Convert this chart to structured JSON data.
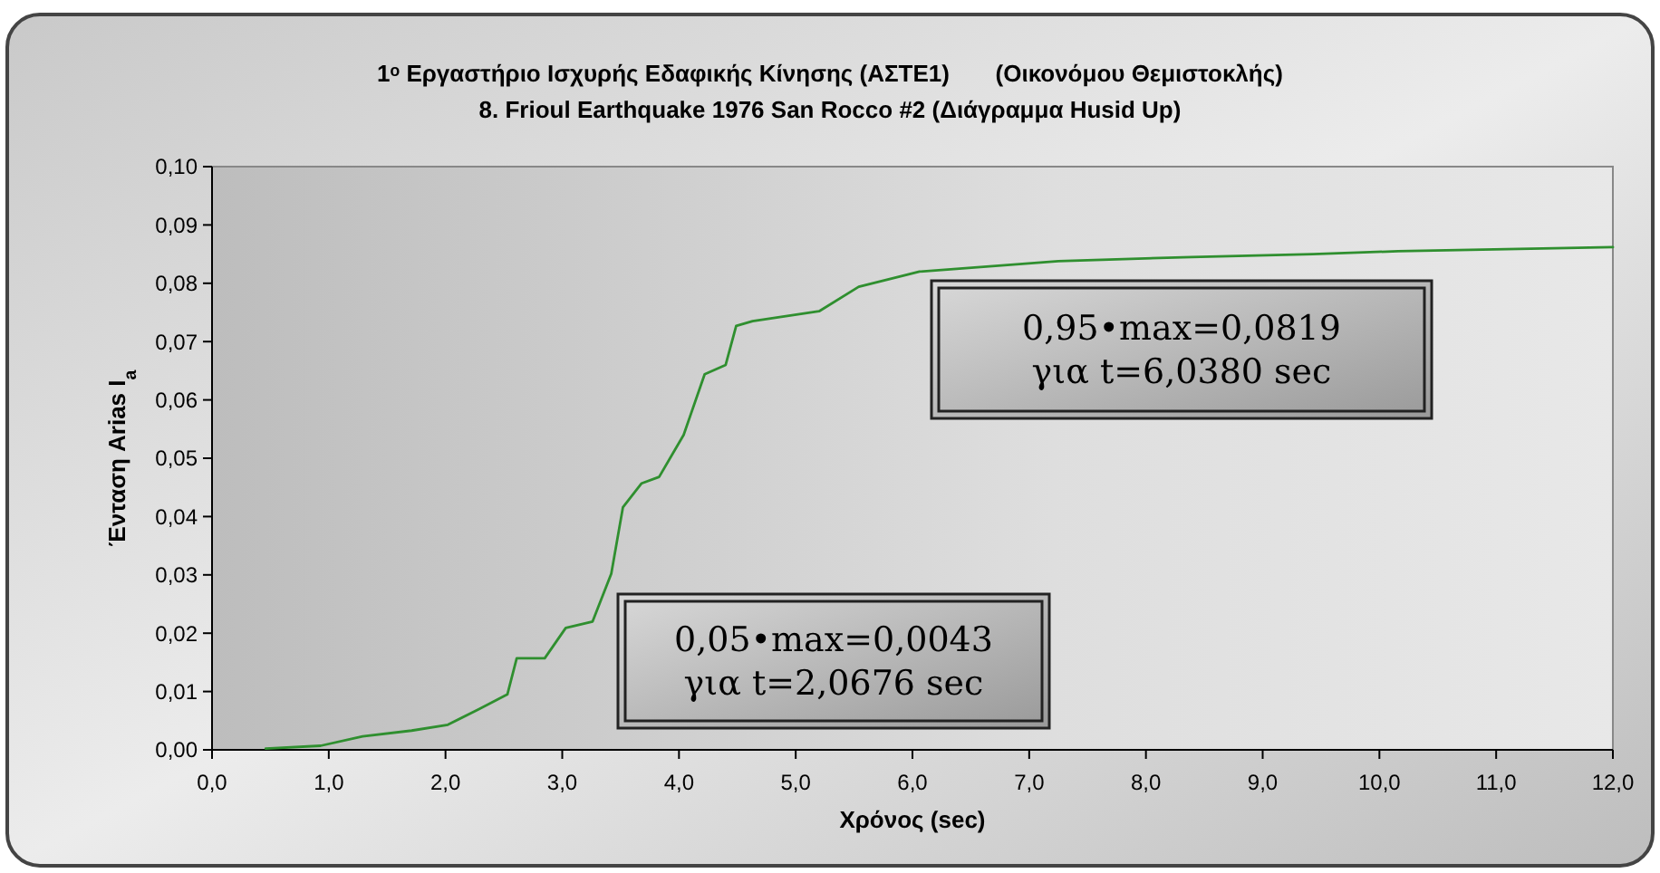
{
  "chart_data": {
    "type": "line",
    "title": "1ᵒ Εργαστήριο Ισχυρής Εδαφικής Κίνησης (ΑΣΤΕ1)       (Οικονόμου Θεμιστοκλής)",
    "subtitle": "8. Frioul Earthquake 1976 San Rocco #2 (Διάγραμμα Husid Up)",
    "xlabel": "Χρόνος (sec)",
    "ylabel": "Ένταση Arias I$_{a}$",
    "x": [
      0.46,
      0.93,
      1.29,
      1.71,
      2.02,
      2.28,
      2.53,
      2.61,
      2.85,
      3.03,
      3.26,
      3.42,
      3.52,
      3.68,
      3.83,
      4.04,
      4.22,
      4.4,
      4.49,
      4.63,
      5.2,
      5.54,
      5.96,
      6.06,
      7.25,
      8.39,
      9.43,
      10.16,
      11.5,
      12.0
    ],
    "series": [
      {
        "color": "#2f8f2f",
        "values": [
          0.0002,
          0.0007,
          0.0023,
          0.0033,
          0.0043,
          0.0069,
          0.0095,
          0.0157,
          0.0157,
          0.0209,
          0.022,
          0.0302,
          0.0416,
          0.0457,
          0.0468,
          0.054,
          0.0644,
          0.066,
          0.0727,
          0.0735,
          0.0752,
          0.0794,
          0.0815,
          0.082,
          0.0838,
          0.0845,
          0.085,
          0.0855,
          0.086,
          0.0862
        ]
      }
    ],
    "xlim": [
      0,
      12
    ],
    "ylim": [
      0,
      0.1
    ],
    "xticks": [
      {
        "value": 0,
        "label": "0,0"
      },
      {
        "value": 1,
        "label": "1,0"
      },
      {
        "value": 2,
        "label": "2,0"
      },
      {
        "value": 3,
        "label": "3,0"
      },
      {
        "value": 4,
        "label": "4,0"
      },
      {
        "value": 5,
        "label": "5,0"
      },
      {
        "value": 6,
        "label": "6,0"
      },
      {
        "value": 7,
        "label": "7,0"
      },
      {
        "value": 8,
        "label": "8,0"
      },
      {
        "value": 9,
        "label": "9,0"
      },
      {
        "value": 10,
        "label": "10,0"
      },
      {
        "value": 11,
        "label": "11,0"
      },
      {
        "value": 12,
        "label": "12,0"
      }
    ],
    "yticks": [
      {
        "value": 0,
        "label": "0,00"
      },
      {
        "value": 0.01,
        "label": "0,01"
      },
      {
        "value": 0.02,
        "label": "0,02"
      },
      {
        "value": 0.03,
        "label": "0,03"
      },
      {
        "value": 0.04,
        "label": "0,04"
      },
      {
        "value": 0.05,
        "label": "0,05"
      },
      {
        "value": 0.06,
        "label": "0,06"
      },
      {
        "value": 0.07,
        "label": "0,07"
      },
      {
        "value": 0.08,
        "label": "0,08"
      },
      {
        "value": 0.09,
        "label": "0,09"
      },
      {
        "value": 0.1,
        "label": "0,10"
      }
    ],
    "annotations": [
      "0,95•max=0,0819\nγια t=6,0380 sec",
      "0,05•max=0,0043\nγια t=2,0676 sec"
    ],
    "grid": false,
    "marker": "none",
    "line_style": "solid"
  }
}
